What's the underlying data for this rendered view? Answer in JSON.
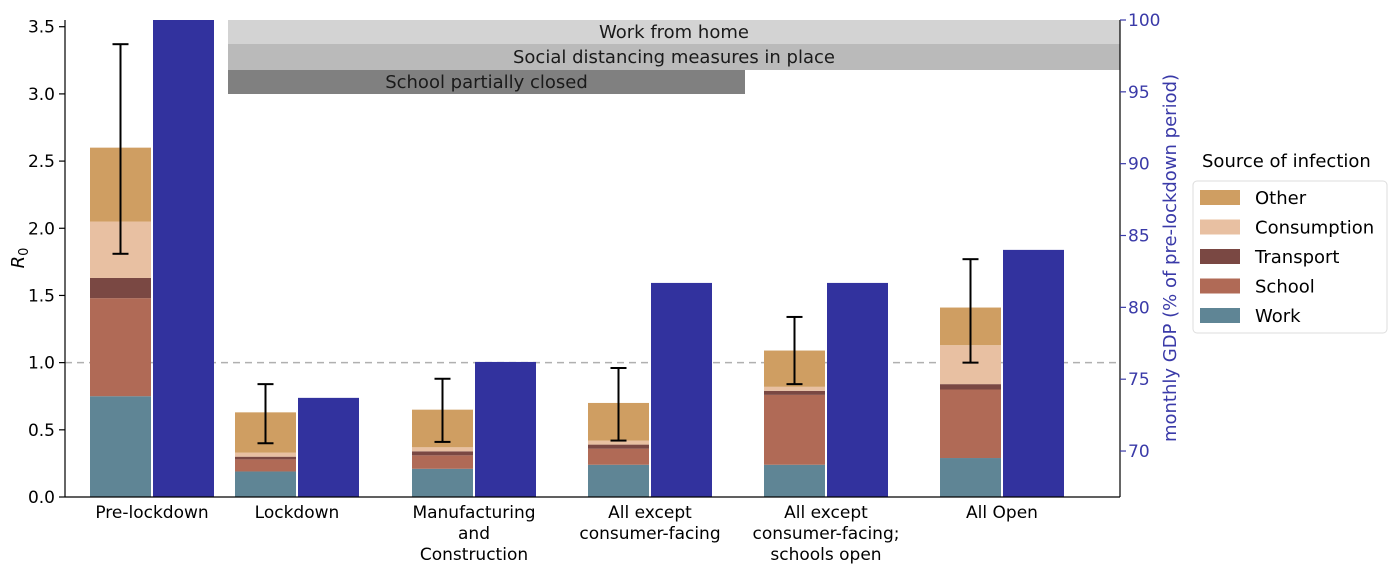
{
  "chart_data": {
    "type": "bar",
    "stacked": true,
    "categories": [
      [
        "Pre-lockdown"
      ],
      [
        "Lockdown"
      ],
      [
        "Manufacturing",
        "and",
        "Construction"
      ],
      [
        "All except",
        "consumer-facing"
      ],
      [
        "All except",
        "consumer-facing;",
        "schools open"
      ],
      [
        "All Open"
      ]
    ],
    "ylabel_main": "R",
    "ylabel_sub": "0",
    "ylim": [
      0,
      3.55
    ],
    "yticks": [
      "0.0",
      "0.5",
      "1.0",
      "1.5",
      "2.0",
      "2.5",
      "3.0",
      "3.5"
    ],
    "y2label": "monthly GDP (% of pre-lockdown period)",
    "y2lim": [
      66.8,
      100
    ],
    "y2ticks": [
      "70",
      "75",
      "80",
      "85",
      "90",
      "95",
      "100"
    ],
    "reference_line": 1.0,
    "series": [
      {
        "name": "Work",
        "color": "#5f8595",
        "values": [
          0.75,
          0.19,
          0.21,
          0.24,
          0.24,
          0.29
        ]
      },
      {
        "name": "School",
        "color": "#b06a56",
        "values": [
          0.73,
          0.09,
          0.1,
          0.12,
          0.52,
          0.51
        ]
      },
      {
        "name": "Transport",
        "color": "#7a4843",
        "values": [
          0.15,
          0.02,
          0.03,
          0.03,
          0.03,
          0.04
        ]
      },
      {
        "name": "Consumption",
        "color": "#e8c0a2",
        "values": [
          0.42,
          0.03,
          0.03,
          0.03,
          0.03,
          0.29
        ]
      },
      {
        "name": "Other",
        "color": "#cf9e62",
        "values": [
          0.55,
          0.3,
          0.28,
          0.28,
          0.27,
          0.28
        ]
      }
    ],
    "error_bars": [
      {
        "low": 1.81,
        "high": 3.37
      },
      {
        "low": 0.4,
        "high": 0.84
      },
      {
        "low": 0.41,
        "high": 0.88
      },
      {
        "low": 0.42,
        "high": 0.96
      },
      {
        "low": 0.84,
        "high": 1.34
      },
      {
        "low": 1.0,
        "high": 1.77
      }
    ],
    "gdp": {
      "color": "#32329e",
      "values": [
        100,
        73.7,
        76.2,
        81.7,
        81.7,
        84
      ]
    },
    "bands": [
      {
        "label": "Work from home",
        "color": "#d3d3d3",
        "from_category": 1,
        "to_category": 5
      },
      {
        "label": "Social distancing measures in place",
        "color": "#bababa",
        "from_category": 1,
        "to_category": 5
      },
      {
        "label": "School partially closed",
        "color": "#808080",
        "from_category": 1,
        "to_category": 3
      }
    ],
    "legend": {
      "title": "Source of infection",
      "position": "right",
      "order": [
        "Other",
        "Consumption",
        "Transport",
        "School",
        "Work"
      ]
    }
  }
}
